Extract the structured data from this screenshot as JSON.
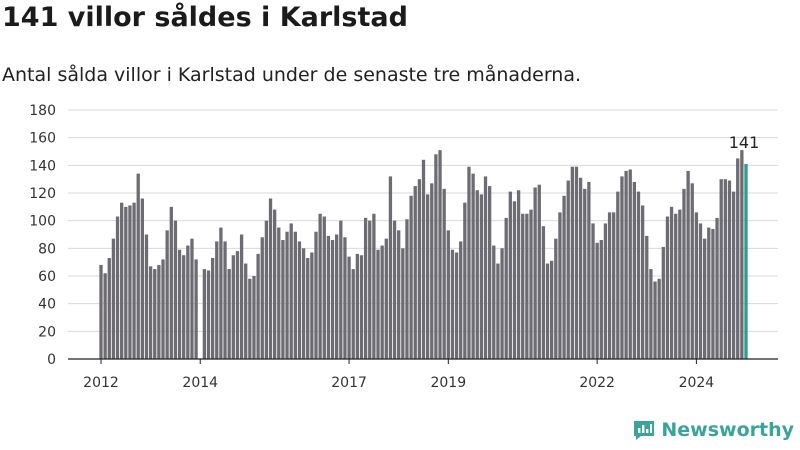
{
  "header": {
    "title": "141 villor såldes i Karlstad",
    "subtitle": "Antal sålda villor i Karlstad under de senaste tre månaderna."
  },
  "brand": {
    "name": "Newsworthy",
    "icon": "newsworthy-logo-icon",
    "color": "#3aa39a"
  },
  "colors": {
    "bar": "#6d6c72",
    "highlight": "#2a9d8f",
    "grid": "#d9d9d9",
    "axis": "#222222"
  },
  "chart_data": {
    "type": "bar",
    "title": "141 villor såldes i Karlstad",
    "subtitle": "Antal sålda villor i Karlstad under de senaste tre månaderna.",
    "ylim": [
      0,
      180
    ],
    "yticks": [
      0,
      20,
      40,
      60,
      80,
      100,
      120,
      140,
      160,
      180
    ],
    "xtick_labels": [
      "2012",
      "2014",
      "2017",
      "2019",
      "2022",
      "2024"
    ],
    "grid": true,
    "values": [
      68,
      62,
      73,
      87,
      103,
      113,
      110,
      111,
      113,
      134,
      116,
      90,
      67,
      65,
      68,
      72,
      93,
      110,
      100,
      79,
      75,
      82,
      87,
      72,
      0,
      65,
      64,
      73,
      85,
      95,
      85,
      65,
      75,
      78,
      90,
      69,
      58,
      60,
      76,
      88,
      100,
      116,
      108,
      95,
      86,
      92,
      98,
      92,
      85,
      80,
      73,
      77,
      92,
      105,
      103,
      89,
      86,
      90,
      100,
      88,
      74,
      65,
      76,
      75,
      102,
      100,
      105,
      79,
      82,
      87,
      132,
      100,
      93,
      80,
      101,
      118,
      125,
      130,
      144,
      119,
      127,
      148,
      151,
      123,
      93,
      79,
      77,
      85,
      113,
      139,
      134,
      122,
      119,
      132,
      125,
      82,
      69,
      80,
      102,
      121,
      114,
      122,
      105,
      105,
      108,
      124,
      126,
      96,
      69,
      71,
      87,
      106,
      118,
      129,
      139,
      139,
      131,
      123,
      128,
      98,
      84,
      86,
      98,
      106,
      106,
      121,
      132,
      136,
      137,
      128,
      121,
      111,
      89,
      65,
      56,
      58,
      81,
      103,
      110,
      105,
      108,
      123,
      136,
      127,
      106,
      98,
      87,
      95,
      94,
      102,
      130,
      130,
      129,
      121,
      145,
      151,
      141
    ],
    "last_value": 141,
    "last_label": "141"
  }
}
